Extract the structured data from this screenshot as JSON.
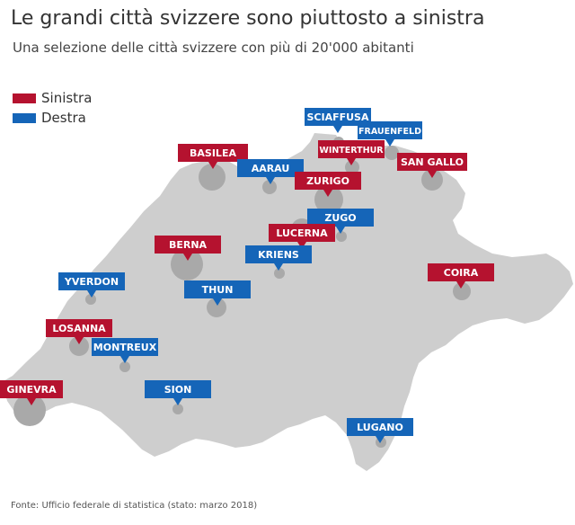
{
  "title": "Le grandi città svizzere sono piuttosto a sinistra",
  "subtitle": "Una selezione delle città svizzere con più di 20'000 abitanti",
  "legend": [
    {
      "label": "Sinistra",
      "color": "#b5122f"
    },
    {
      "label": "Destra",
      "color": "#1565b8"
    }
  ],
  "source": "Fonte: Ufficio federale di statistica (stato: marzo 2018)",
  "colors": {
    "map": "#cecece",
    "bubble": "#a9a9a9"
  },
  "cities": [
    {
      "name": "SCIAFFUSA",
      "orientation": "Destra"
    },
    {
      "name": "FRAUENFELD",
      "orientation": "Destra"
    },
    {
      "name": "WINTERTHUR",
      "orientation": "Sinistra"
    },
    {
      "name": "SAN GALLO",
      "orientation": "Sinistra"
    },
    {
      "name": "BASILEA",
      "orientation": "Sinistra"
    },
    {
      "name": "AARAU",
      "orientation": "Destra"
    },
    {
      "name": "ZURIGO",
      "orientation": "Sinistra"
    },
    {
      "name": "ZUGO",
      "orientation": "Destra"
    },
    {
      "name": "LUCERNA",
      "orientation": "Sinistra"
    },
    {
      "name": "KRIENS",
      "orientation": "Destra"
    },
    {
      "name": "BERNA",
      "orientation": "Sinistra"
    },
    {
      "name": "COIRA",
      "orientation": "Sinistra"
    },
    {
      "name": "YVERDON",
      "orientation": "Destra"
    },
    {
      "name": "THUN",
      "orientation": "Destra"
    },
    {
      "name": "LOSANNA",
      "orientation": "Sinistra"
    },
    {
      "name": "MONTREUX",
      "orientation": "Destra"
    },
    {
      "name": "GINEVRA",
      "orientation": "Sinistra"
    },
    {
      "name": "SION",
      "orientation": "Destra"
    },
    {
      "name": "LUGANO",
      "orientation": "Destra"
    }
  ]
}
